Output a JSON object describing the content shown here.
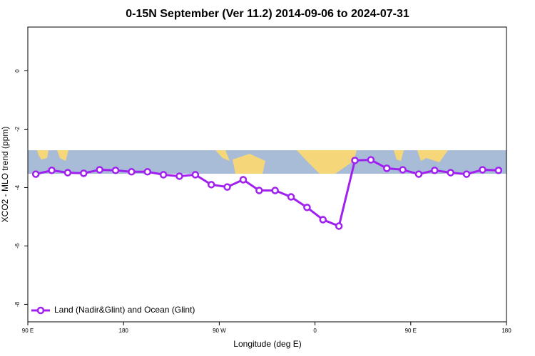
{
  "chart_data": {
    "type": "line",
    "title": "0-15N September (Ver 11.2)   2014-09-06 to 2024-07-31",
    "xlabel": "Longitude (deg E)",
    "ylabel": "XCO2 - MLO trend (ppm)",
    "x": [
      97.5,
      112.5,
      127.5,
      142.5,
      157.5,
      172.5,
      187.5,
      202.5,
      217.5,
      232.5,
      247.5,
      262.5,
      277.5,
      292.5,
      307.5,
      322.5,
      337.5,
      352.5,
      367.5,
      382.5,
      397.5,
      412.5,
      427.5,
      442.5,
      457.5,
      472.5,
      487.5,
      502.5,
      517.5,
      532.5
    ],
    "series": [
      {
        "name": "Land (Nadir&Glint) and Ocean (Glint)",
        "color": "#a020f0",
        "values": [
          -3.54,
          -3.41,
          -3.49,
          -3.51,
          -3.39,
          -3.41,
          -3.46,
          -3.46,
          -3.56,
          -3.61,
          -3.56,
          -3.9,
          -3.98,
          -3.73,
          -4.1,
          -4.1,
          -4.32,
          -4.68,
          -5.1,
          -5.32,
          -3.07,
          -3.05,
          -3.34,
          -3.39,
          -3.54,
          -3.41,
          -3.49,
          -3.54,
          -3.39,
          -3.41
        ]
      }
    ],
    "xlim": [
      90,
      540
    ],
    "xticks": [
      {
        "value": 90,
        "label": "90 E"
      },
      180,
      {
        "value": 270,
        "label": "90 W"
      },
      {
        "value": 360,
        "label": "0"
      },
      {
        "value": 450,
        "label": "90 E"
      },
      {
        "value": 540,
        "label": "180"
      }
    ],
    "ylim": [
      1.5,
      -8.6
    ],
    "yticks": [
      0,
      -2,
      -4,
      -6,
      -8
    ],
    "legend": "bottom-left"
  }
}
